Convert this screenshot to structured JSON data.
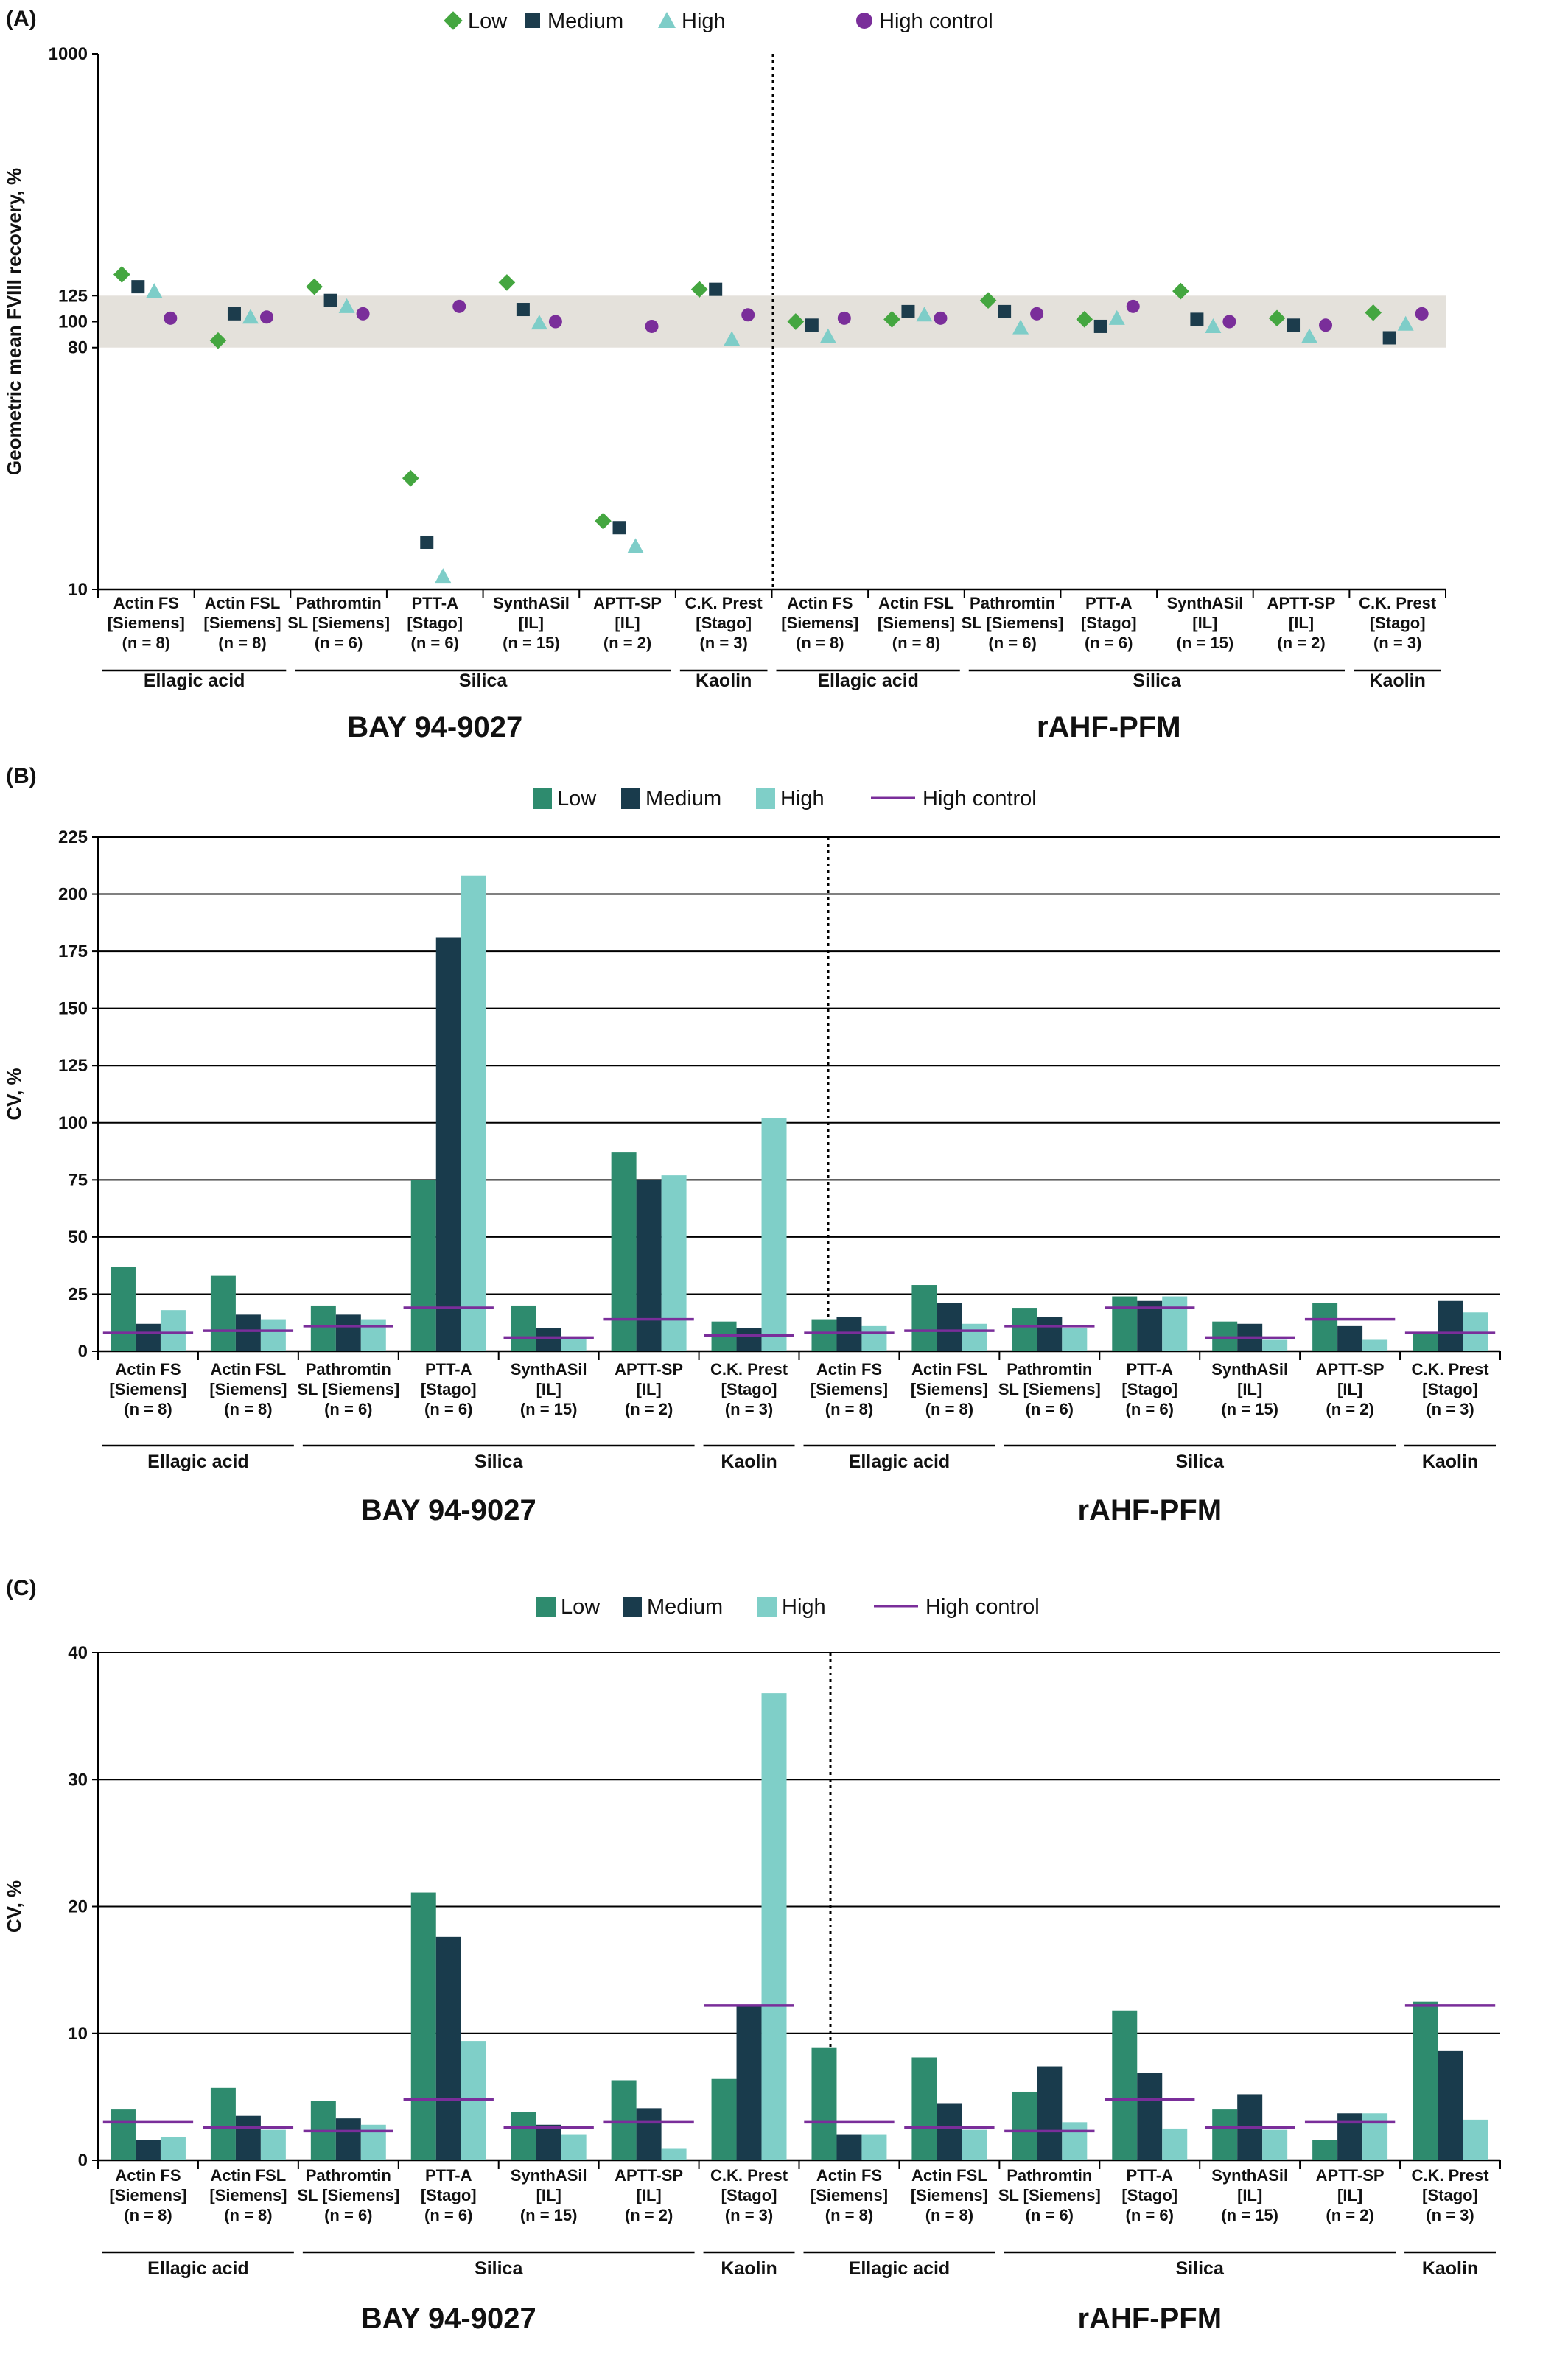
{
  "colors": {
    "low_bar": "#2E8B6E",
    "medium_bar": "#193B4C",
    "high_bar": "#7FCFC8",
    "low_marker": "#44A640",
    "medium_marker": "#1C3C4C",
    "high_marker": "#7ECDC8",
    "high_control": "#7A2E9A",
    "band": "#E4E1DB"
  },
  "categories": [
    [
      "Actin FS",
      "[Siemens]",
      "(n = 8)"
    ],
    [
      "Actin FSL",
      "[Siemens]",
      "(n = 8)"
    ],
    [
      "Pathromtin",
      "SL [Siemens]",
      "(n = 6)"
    ],
    [
      "PTT-A",
      "[Stago]",
      "(n = 6)"
    ],
    [
      "SynthASil",
      "[IL]",
      "(n = 15)"
    ],
    [
      "APTT-SP",
      "[IL]",
      "(n = 2)"
    ],
    [
      "C.K. Prest",
      "[Stago]",
      "(n = 3)"
    ]
  ],
  "groups": [
    {
      "label": "Ellagic acid",
      "from": 0,
      "to": 1
    },
    {
      "label": "Silica",
      "from": 2,
      "to": 5
    },
    {
      "label": "Kaolin",
      "from": 6,
      "to": 6
    }
  ],
  "products": [
    "BAY 94-9027",
    "rAHF-PFM"
  ],
  "chart_data": [
    {
      "panel": "(A)",
      "type": "scatter",
      "ylabel": "Geometric mean FVIII recovery, %",
      "y_scale": "log",
      "ylim": [
        10,
        1000
      ],
      "yticks": [
        10,
        80,
        100,
        125,
        1000
      ],
      "reference_band": [
        80,
        125
      ],
      "legend": [
        "Low",
        "Medium",
        "High",
        "High control"
      ],
      "series": [
        {
          "name": "Low",
          "values": [
            150,
            85,
            135,
            26,
            140,
            18,
            132,
            100,
            102,
            120,
            102,
            130,
            103,
            108
          ]
        },
        {
          "name": "Medium",
          "values": [
            135,
            107,
            120,
            15,
            111,
            17,
            132,
            97,
            109,
            109,
            96,
            102,
            97,
            87
          ]
        },
        {
          "name": "High",
          "values": [
            130,
            104,
            114,
            11.2,
            99,
            14.5,
            86,
            88,
            106,
            95,
            103,
            96,
            88,
            98
          ]
        },
        {
          "name": "High control",
          "values": [
            103,
            104,
            107,
            114,
            100,
            96,
            106,
            103,
            103,
            107,
            114,
            100,
            97,
            107
          ]
        }
      ]
    },
    {
      "panel": "(B)",
      "type": "bar",
      "ylabel": "CV, %",
      "ylim": [
        0,
        225
      ],
      "yticks": [
        0,
        25,
        50,
        75,
        100,
        125,
        150,
        175,
        200,
        225
      ],
      "grid": true,
      "legend": [
        "Low",
        "Medium",
        "High",
        "High control"
      ],
      "series": [
        {
          "name": "Low",
          "values": [
            37,
            33,
            20,
            75,
            20,
            87,
            13,
            14,
            29,
            19,
            24,
            13,
            21,
            8
          ]
        },
        {
          "name": "Medium",
          "values": [
            12,
            16,
            16,
            181,
            10,
            75,
            10,
            15,
            21,
            15,
            22,
            12,
            11,
            22
          ]
        },
        {
          "name": "High",
          "values": [
            18,
            14,
            14,
            208,
            6,
            77,
            102,
            11,
            12,
            10,
            24,
            5,
            5,
            17
          ]
        },
        {
          "name": "High control",
          "values": [
            8,
            9,
            11,
            19,
            6,
            14,
            7,
            8,
            9,
            11,
            19,
            6,
            14,
            8
          ]
        }
      ]
    },
    {
      "panel": "(C)",
      "type": "bar",
      "ylabel": "CV, %",
      "ylim": [
        0,
        40
      ],
      "yticks": [
        0,
        10,
        20,
        30,
        40
      ],
      "grid": true,
      "legend": [
        "Low",
        "Medium",
        "High",
        "High control"
      ],
      "series": [
        {
          "name": "Low",
          "values": [
            4,
            5.7,
            4.7,
            21.1,
            3.8,
            6.3,
            6.4,
            8.9,
            8.1,
            5.4,
            11.8,
            4,
            1.6,
            12.5
          ]
        },
        {
          "name": "Medium",
          "values": [
            1.6,
            3.5,
            3.3,
            17.6,
            2.8,
            4.1,
            12.2,
            2,
            4.5,
            7.4,
            6.9,
            5.2,
            3.7,
            8.6
          ]
        },
        {
          "name": "High",
          "values": [
            1.8,
            2.4,
            2.8,
            9.4,
            2,
            0.9,
            36.8,
            2,
            2.4,
            3,
            2.5,
            2.4,
            3.7,
            3.2
          ]
        },
        {
          "name": "High control",
          "values": [
            3,
            2.6,
            2.3,
            4.8,
            2.6,
            3,
            12.2,
            3,
            2.6,
            2.3,
            4.8,
            2.6,
            3,
            12.2
          ]
        }
      ]
    }
  ]
}
